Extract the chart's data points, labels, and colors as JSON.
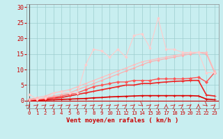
{
  "x": [
    0,
    1,
    2,
    3,
    4,
    5,
    6,
    7,
    8,
    9,
    10,
    11,
    12,
    13,
    14,
    15,
    16,
    17,
    18,
    19,
    20,
    21,
    22,
    23
  ],
  "series": [
    {
      "name": "line_darkred_bottom",
      "color": "#dd0000",
      "linewidth": 1.2,
      "marker": "+",
      "markersize": 3.0,
      "y": [
        0.1,
        0.1,
        0.2,
        0.3,
        0.4,
        0.5,
        0.6,
        0.7,
        0.9,
        1.0,
        1.2,
        1.3,
        1.4,
        1.5,
        1.6,
        1.6,
        1.6,
        1.6,
        1.6,
        1.6,
        1.6,
        1.5,
        0.5,
        0.3
      ]
    },
    {
      "name": "line_red_medium_low",
      "color": "#ee2222",
      "linewidth": 1.2,
      "marker": "+",
      "markersize": 3.0,
      "y": [
        0.2,
        0.3,
        0.5,
        0.8,
        1.0,
        1.5,
        2.0,
        2.5,
        3.0,
        3.5,
        4.0,
        4.5,
        5.0,
        5.0,
        5.5,
        5.5,
        5.8,
        6.0,
        6.2,
        6.3,
        6.5,
        6.5,
        1.8,
        1.5
      ]
    },
    {
      "name": "line_red_medium",
      "color": "#ff5555",
      "linewidth": 1.0,
      "marker": "D",
      "markersize": 2.0,
      "y": [
        0.3,
        0.4,
        0.7,
        1.0,
        1.5,
        2.0,
        2.5,
        3.5,
        4.5,
        5.0,
        5.5,
        6.0,
        6.0,
        6.5,
        6.5,
        6.5,
        7.0,
        7.0,
        7.0,
        7.0,
        7.2,
        7.5,
        6.0,
        9.0
      ]
    },
    {
      "name": "line_pink_linear1",
      "color": "#ffaaaa",
      "linewidth": 0.8,
      "marker": "D",
      "markersize": 1.5,
      "y": [
        0.1,
        0.5,
        1.0,
        1.5,
        2.0,
        2.5,
        3.5,
        4.5,
        5.5,
        6.5,
        7.5,
        8.5,
        9.5,
        10.5,
        11.5,
        12.5,
        13.0,
        13.5,
        14.0,
        14.5,
        15.0,
        15.5,
        15.0,
        9.0
      ]
    },
    {
      "name": "line_pink_linear2",
      "color": "#ffbbbb",
      "linewidth": 0.8,
      "marker": "D",
      "markersize": 1.5,
      "y": [
        0.5,
        1.0,
        1.5,
        2.5,
        3.0,
        3.5,
        4.5,
        5.5,
        6.5,
        7.5,
        8.5,
        9.5,
        10.5,
        11.5,
        12.5,
        13.0,
        13.5,
        14.0,
        14.5,
        15.0,
        15.5,
        15.5,
        15.5,
        9.5
      ]
    },
    {
      "name": "line_lightpink_jagged",
      "color": "#ffcccc",
      "linewidth": 0.8,
      "marker": "D",
      "markersize": 1.8,
      "y": [
        2.0,
        0.5,
        0.8,
        2.5,
        2.8,
        2.5,
        2.5,
        11.5,
        16.5,
        16.0,
        14.0,
        16.5,
        14.0,
        21.0,
        21.5,
        17.0,
        26.5,
        16.5,
        16.5,
        15.5,
        15.5,
        15.5,
        9.0,
        9.0
      ]
    }
  ],
  "xlim": [
    -0.3,
    23.5
  ],
  "ylim": [
    -2.5,
    31
  ],
  "yticks": [
    0,
    5,
    10,
    15,
    20,
    25,
    30
  ],
  "xticks": [
    0,
    1,
    2,
    3,
    4,
    5,
    6,
    7,
    8,
    9,
    10,
    11,
    12,
    13,
    14,
    15,
    16,
    17,
    18,
    19,
    20,
    21,
    22,
    23
  ],
  "xlabel": "Vent moyen/en rafales ( km/h )",
  "bg_color": "#c8eef0",
  "grid_color": "#9ecece",
  "axis_color": "#cc0000",
  "label_color": "#cc0000",
  "tick_color": "#cc0000",
  "arrow_angles": [
    45,
    45,
    45,
    45,
    45,
    45,
    45,
    45,
    45,
    45,
    45,
    45,
    45,
    45,
    315,
    45,
    45,
    90,
    45,
    45,
    45,
    90,
    315,
    45
  ]
}
